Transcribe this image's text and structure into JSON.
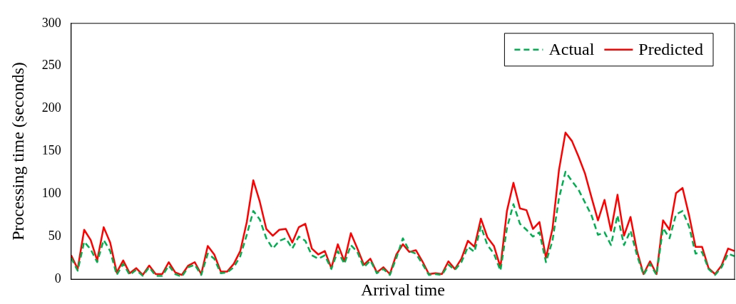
{
  "chart_data": {
    "type": "line",
    "xlabel": "Arrival time",
    "ylabel": "Processing time (seconds)",
    "categories": [
      null,
      null,
      null,
      null,
      null,
      null,
      null,
      null,
      null,
      null,
      null,
      null,
      null,
      null,
      null,
      null,
      null,
      null,
      null,
      null,
      null,
      null,
      null,
      null,
      null,
      null,
      null,
      null,
      null,
      null,
      null,
      null,
      null,
      null,
      null,
      null,
      null,
      null,
      null,
      null,
      null,
      null,
      null,
      null,
      null,
      null,
      null,
      null,
      null,
      null,
      null,
      null,
      null,
      null,
      null,
      null,
      null,
      null,
      null,
      null,
      null,
      null,
      null,
      null,
      null,
      null,
      null,
      null,
      null,
      null,
      null,
      null,
      null,
      null,
      null,
      null,
      null,
      null,
      null,
      null,
      null,
      null,
      null,
      null,
      null,
      null,
      null,
      null,
      null,
      null,
      null,
      null,
      null,
      null,
      null,
      null,
      null,
      null,
      null,
      null,
      null,
      null,
      null
    ],
    "series": [
      {
        "name": "Actual",
        "color": "#00b050",
        "line_style": "dashed",
        "values": [
          25,
          10,
          44,
          35,
          20,
          46,
          33,
          5,
          18,
          5,
          11,
          4,
          14,
          4,
          4,
          16,
          6,
          3,
          14,
          17,
          5,
          30,
          24,
          7,
          8,
          14,
          27,
          52,
          80,
          70,
          48,
          36,
          45,
          48,
          36,
          50,
          45,
          28,
          24,
          28,
          12,
          33,
          18,
          40,
          32,
          14,
          22,
          7,
          12,
          5,
          25,
          48,
          33,
          30,
          18,
          5,
          6,
          5,
          17,
          11,
          20,
          38,
          32,
          62,
          40,
          30,
          10,
          60,
          88,
          65,
          58,
          50,
          55,
          20,
          45,
          95,
          126,
          115,
          105,
          90,
          75,
          52,
          55,
          40,
          75,
          40,
          57,
          28,
          5,
          18,
          5,
          60,
          48,
          76,
          80,
          62,
          30,
          32,
          12,
          5,
          14,
          30,
          27
        ]
      },
      {
        "name": "Predicted",
        "color": "#ff0000",
        "line_style": "solid",
        "values": [
          28,
          12,
          58,
          46,
          22,
          61,
          43,
          8,
          22,
          7,
          13,
          5,
          16,
          6,
          6,
          20,
          8,
          5,
          16,
          20,
          6,
          39,
          29,
          9,
          9,
          18,
          33,
          67,
          116,
          91,
          59,
          51,
          58,
          59,
          43,
          61,
          65,
          36,
          29,
          33,
          13,
          41,
          21,
          54,
          36,
          17,
          24,
          8,
          14,
          6,
          29,
          41,
          32,
          34,
          21,
          6,
          7,
          6,
          21,
          12,
          24,
          45,
          38,
          71,
          49,
          39,
          14,
          80,
          113,
          83,
          81,
          59,
          67,
          25,
          59,
          128,
          172,
          162,
          144,
          124,
          96,
          69,
          93,
          57,
          99,
          51,
          73,
          33,
          6,
          21,
          6,
          69,
          58,
          101,
          107,
          75,
          38,
          38,
          13,
          6,
          16,
          36,
          33
        ]
      }
    ],
    "ylim": [
      0,
      300
    ],
    "yticks": [
      0,
      50,
      100,
      150,
      200,
      250,
      300
    ],
    "grid": false,
    "legend": "top right",
    "marker": "none"
  }
}
